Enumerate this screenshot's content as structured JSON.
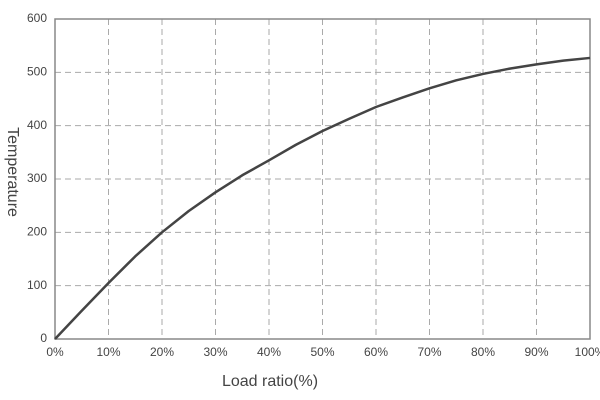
{
  "chart_data": {
    "type": "line",
    "xlabel": "Load ratio(%)",
    "ylabel": "Temperature",
    "x": [
      0,
      5,
      10,
      15,
      20,
      25,
      30,
      35,
      40,
      45,
      50,
      55,
      60,
      65,
      70,
      75,
      80,
      85,
      90,
      95,
      100
    ],
    "series": [
      {
        "color": "#444444",
        "values": [
          0,
          53,
          105,
          155,
          200,
          240,
          275,
          307,
          335,
          364,
          390,
          413,
          435,
          453,
          470,
          485,
          497,
          507,
          515,
          522,
          527
        ]
      }
    ],
    "xlim": [
      0,
      100
    ],
    "ylim": [
      0,
      600
    ],
    "xticks": [
      {
        "value": 0,
        "label": "0%"
      },
      {
        "value": 10,
        "label": "10%"
      },
      {
        "value": 20,
        "label": "20%"
      },
      {
        "value": 30,
        "label": "30%"
      },
      {
        "value": 40,
        "label": "40%"
      },
      {
        "value": 50,
        "label": "50%"
      },
      {
        "value": 60,
        "label": "60%"
      },
      {
        "value": 70,
        "label": "70%"
      },
      {
        "value": 80,
        "label": "80%"
      },
      {
        "value": 90,
        "label": "90%"
      },
      {
        "value": 100,
        "label": "100%"
      }
    ],
    "yticks": [
      0,
      100,
      200,
      300,
      400,
      500,
      600
    ],
    "grid": true
  }
}
